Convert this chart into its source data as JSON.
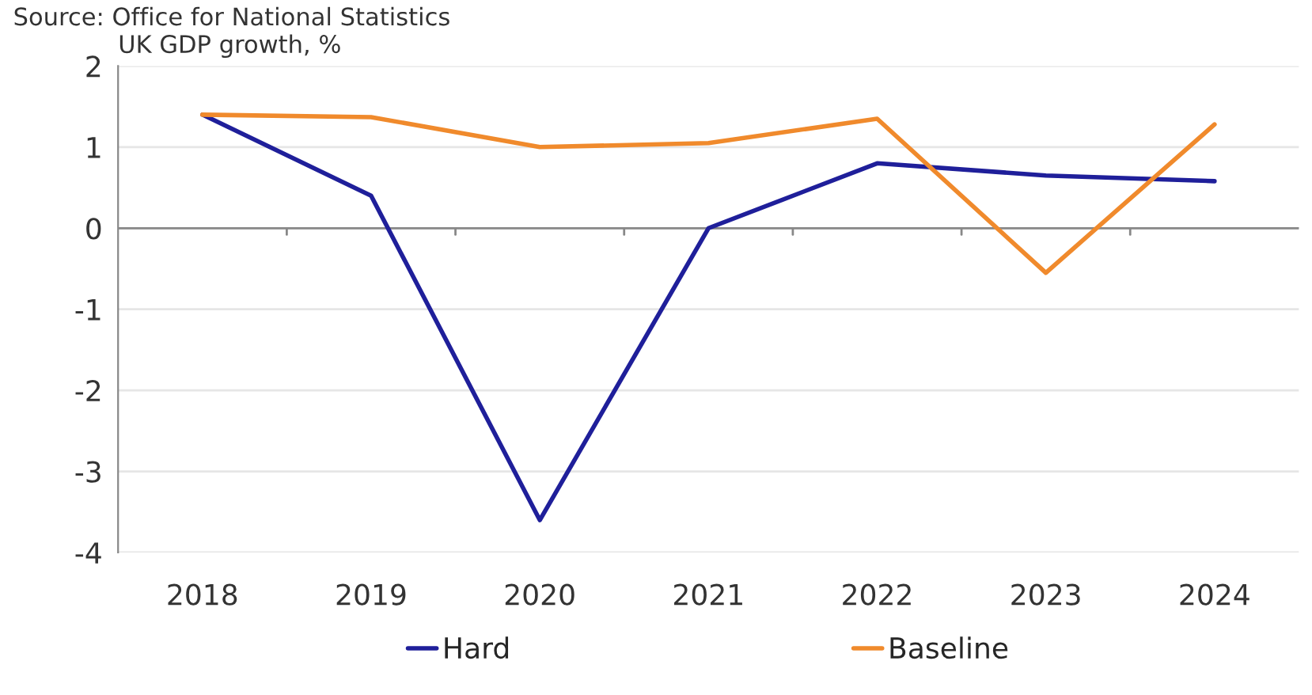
{
  "chart_data": {
    "type": "line",
    "title": "UK GDP growth, %",
    "annotations": [
      "Source: Office for National Statistics"
    ],
    "categories": [
      "2018",
      "2019",
      "2020",
      "2021",
      "2022",
      "2023",
      "2024"
    ],
    "series": [
      {
        "name": "Hard",
        "color": "#1f1f9a",
        "values": [
          1.4,
          0.4,
          -3.6,
          0.0,
          0.8,
          0.65,
          0.58
        ]
      },
      {
        "name": "Baseline",
        "color": "#f08a2c",
        "values": [
          1.4,
          1.37,
          1.0,
          1.05,
          1.35,
          -0.55,
          1.28
        ]
      }
    ],
    "ylim": [
      -4,
      2
    ],
    "yticks": [
      -4,
      -3,
      -2,
      -1,
      0,
      1,
      2
    ],
    "grid": "y",
    "legend": "bottom",
    "marker": "none",
    "line_style": "solid"
  }
}
